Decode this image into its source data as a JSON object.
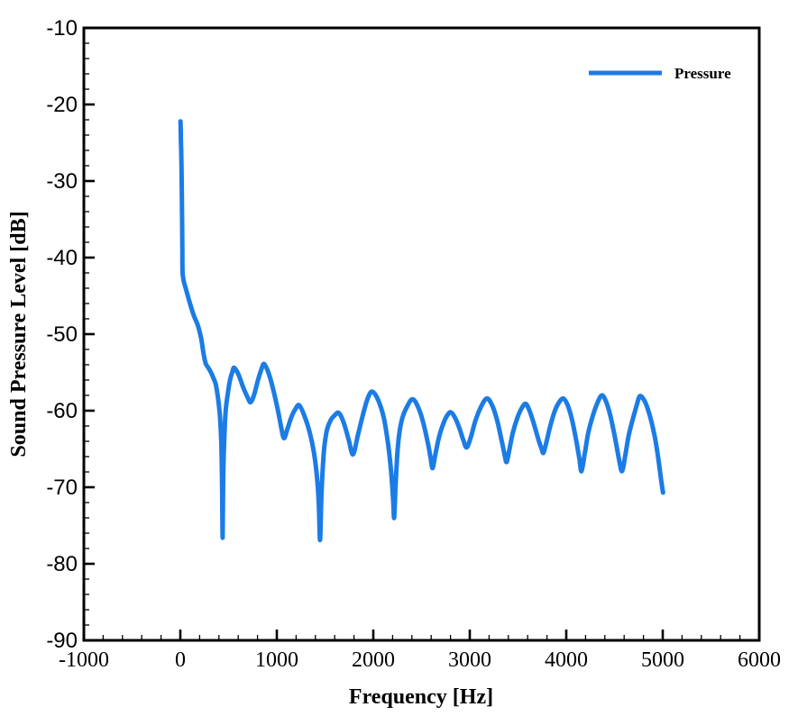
{
  "figure": {
    "background": "#ffffff",
    "axis_color": "#000000"
  },
  "chart_data": {
    "type": "line",
    "title": "",
    "xlabel": "Frequency [Hz]",
    "ylabel": "Sound Pressure Level [dB]",
    "xlim": [
      -1000,
      6000
    ],
    "ylim": [
      -90,
      -10
    ],
    "x_major_ticks": [
      -1000,
      0,
      1000,
      2000,
      3000,
      4000,
      5000,
      6000
    ],
    "x_minor_step": 200,
    "y_major_ticks": [
      -90,
      -80,
      -70,
      -60,
      -50,
      -40,
      -30,
      -20,
      -10
    ],
    "y_minor_step": 2,
    "grid": false,
    "legend": {
      "position": "top-right",
      "entries": [
        {
          "label": "Pressure",
          "color": "#1C7CE6"
        }
      ]
    },
    "series": [
      {
        "name": "Pressure",
        "color": "#1C7CE6",
        "points": [
          [
            2,
            -22.2
          ],
          [
            4,
            -23.2
          ],
          [
            6,
            -24.6
          ],
          [
            9,
            -26.2
          ],
          [
            12,
            -28.2
          ],
          [
            15,
            -31
          ],
          [
            18,
            -34.5
          ],
          [
            21,
            -38.5
          ],
          [
            25,
            -42.3
          ],
          [
            60,
            -44.2
          ],
          [
            100,
            -46.0
          ],
          [
            140,
            -47.6
          ],
          [
            180,
            -48.8
          ],
          [
            215,
            -50.5
          ],
          [
            240,
            -52.5
          ],
          [
            262,
            -53.8
          ],
          [
            285,
            -54.3
          ],
          [
            305,
            -54.7
          ],
          [
            325,
            -55.2
          ],
          [
            345,
            -55.8
          ],
          [
            368,
            -56.6
          ],
          [
            395,
            -58.8
          ],
          [
            412,
            -61
          ],
          [
            424,
            -64
          ],
          [
            432,
            -69
          ],
          [
            438,
            -76.6
          ],
          [
            444,
            -69
          ],
          [
            456,
            -63.5
          ],
          [
            470,
            -60
          ],
          [
            492,
            -57.8
          ],
          [
            515,
            -56
          ],
          [
            540,
            -54.9
          ],
          [
            558,
            -54.4
          ],
          [
            600,
            -55.2
          ],
          [
            650,
            -56.9
          ],
          [
            695,
            -58.2
          ],
          [
            728,
            -58.9
          ],
          [
            765,
            -57.9
          ],
          [
            805,
            -56
          ],
          [
            840,
            -54.6
          ],
          [
            868,
            -53.9
          ],
          [
            912,
            -55
          ],
          [
            962,
            -57.2
          ],
          [
            1012,
            -60
          ],
          [
            1046,
            -62.2
          ],
          [
            1075,
            -63.6
          ],
          [
            1112,
            -62.3
          ],
          [
            1152,
            -60.8
          ],
          [
            1192,
            -59.8
          ],
          [
            1233,
            -59.3
          ],
          [
            1290,
            -60.8
          ],
          [
            1340,
            -62.8
          ],
          [
            1385,
            -65.5
          ],
          [
            1415,
            -68.5
          ],
          [
            1435,
            -72
          ],
          [
            1448,
            -76.9
          ],
          [
            1460,
            -72
          ],
          [
            1474,
            -68
          ],
          [
            1492,
            -64.8
          ],
          [
            1520,
            -62.5
          ],
          [
            1560,
            -61.2
          ],
          [
            1600,
            -60.6
          ],
          [
            1642,
            -60.3
          ],
          [
            1692,
            -61.5
          ],
          [
            1745,
            -63.8
          ],
          [
            1790,
            -65.7
          ],
          [
            1840,
            -63.2
          ],
          [
            1895,
            -60.4
          ],
          [
            1945,
            -58.3
          ],
          [
            1990,
            -57.5
          ],
          [
            2050,
            -58.6
          ],
          [
            2110,
            -61
          ],
          [
            2155,
            -64.5
          ],
          [
            2185,
            -68
          ],
          [
            2205,
            -71.5
          ],
          [
            2216,
            -74
          ],
          [
            2230,
            -70
          ],
          [
            2247,
            -66
          ],
          [
            2267,
            -63.2
          ],
          [
            2300,
            -61
          ],
          [
            2352,
            -59.4
          ],
          [
            2406,
            -58.5
          ],
          [
            2460,
            -59.4
          ],
          [
            2512,
            -61.3
          ],
          [
            2562,
            -64
          ],
          [
            2592,
            -66
          ],
          [
            2614,
            -67.5
          ],
          [
            2642,
            -65.8
          ],
          [
            2682,
            -63.4
          ],
          [
            2722,
            -61.8
          ],
          [
            2762,
            -60.7
          ],
          [
            2802,
            -60.2
          ],
          [
            2846,
            -60.9
          ],
          [
            2890,
            -62.2
          ],
          [
            2932,
            -63.8
          ],
          [
            2968,
            -64.8
          ],
          [
            3012,
            -63.4
          ],
          [
            3056,
            -61.4
          ],
          [
            3112,
            -59.6
          ],
          [
            3176,
            -58.4
          ],
          [
            3232,
            -59.3
          ],
          [
            3282,
            -61.2
          ],
          [
            3332,
            -64
          ],
          [
            3362,
            -65.8
          ],
          [
            3382,
            -66.7
          ],
          [
            3412,
            -65
          ],
          [
            3446,
            -62.9
          ],
          [
            3492,
            -61
          ],
          [
            3536,
            -59.7
          ],
          [
            3578,
            -59.1
          ],
          [
            3616,
            -59.9
          ],
          [
            3662,
            -61.6
          ],
          [
            3712,
            -63.8
          ],
          [
            3742,
            -64.9
          ],
          [
            3764,
            -65.5
          ],
          [
            3796,
            -64
          ],
          [
            3836,
            -61.9
          ],
          [
            3882,
            -60
          ],
          [
            3926,
            -58.9
          ],
          [
            3969,
            -58.4
          ],
          [
            4012,
            -59.2
          ],
          [
            4056,
            -61
          ],
          [
            4102,
            -63.8
          ],
          [
            4136,
            -66.3
          ],
          [
            4158,
            -67.9
          ],
          [
            4192,
            -65.6
          ],
          [
            4226,
            -63
          ],
          [
            4272,
            -60.8
          ],
          [
            4322,
            -59
          ],
          [
            4369,
            -58.0
          ],
          [
            4412,
            -58.8
          ],
          [
            4456,
            -60.6
          ],
          [
            4502,
            -63.3
          ],
          [
            4546,
            -66.3
          ],
          [
            4578,
            -67.9
          ],
          [
            4612,
            -65.8
          ],
          [
            4646,
            -63.3
          ],
          [
            4692,
            -61
          ],
          [
            4732,
            -59.2
          ],
          [
            4763,
            -58.1
          ],
          [
            4806,
            -58.6
          ],
          [
            4846,
            -59.8
          ],
          [
            4886,
            -61.6
          ],
          [
            4926,
            -64
          ],
          [
            4960,
            -66.8
          ],
          [
            4986,
            -69.3
          ],
          [
            5003,
            -70.7
          ]
        ]
      }
    ]
  }
}
